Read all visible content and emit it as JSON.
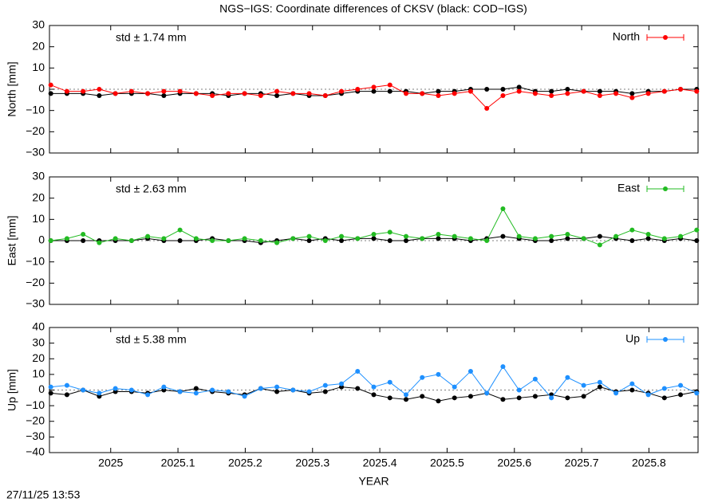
{
  "title": "NGS−IGS: Coordinate differences of CKSV (black: COD−IGS)",
  "timestamp": "27/11/25 13:53",
  "chart_data": [
    {
      "type": "line",
      "ylabel": "North [mm]",
      "annotation": "std ± 1.74 mm",
      "xlim": [
        2024.909,
        2025.873
      ],
      "xticks": [
        2025,
        2025.1,
        2025.2,
        2025.3,
        2025.4,
        2025.5,
        2025.6,
        2025.7,
        2025.8
      ],
      "ylim": [
        -30,
        30
      ],
      "yticks": [
        {
          "value": -30,
          "label": "−30"
        },
        {
          "value": -20,
          "label": "−20"
        },
        {
          "value": -10,
          "label": "−10"
        },
        0,
        10,
        20,
        30
      ],
      "x": [
        2024.911,
        2024.935,
        2024.959,
        2024.983,
        2025.007,
        2025.031,
        2025.055,
        2025.079,
        2025.103,
        2025.127,
        2025.151,
        2025.175,
        2025.199,
        2025.223,
        2025.247,
        2025.271,
        2025.295,
        2025.319,
        2025.343,
        2025.367,
        2025.391,
        2025.415,
        2025.439,
        2025.463,
        2025.487,
        2025.511,
        2025.535,
        2025.559,
        2025.583,
        2025.607,
        2025.631,
        2025.655,
        2025.679,
        2025.703,
        2025.727,
        2025.751,
        2025.775,
        2025.799,
        2025.823,
        2025.847,
        2025.871
      ],
      "series": [
        {
          "color": "#000000",
          "values": [
            -2,
            -2,
            -2,
            -3,
            -2,
            -2,
            -2,
            -3,
            -2,
            -2,
            -2,
            -3,
            -2,
            -2,
            -3,
            -2,
            -3,
            -3,
            -2,
            -1,
            -1,
            -1,
            -1,
            -2,
            -1,
            -1,
            0,
            0,
            0,
            1,
            -1,
            -1,
            0,
            -1,
            -1,
            -1,
            -2,
            -1,
            -1,
            0,
            0
          ]
        },
        {
          "name": "North",
          "color": "#ff0000",
          "values": [
            2,
            -1,
            -1,
            0,
            -2,
            -1,
            -2,
            -1,
            -1,
            -2,
            -3,
            -2,
            -2,
            -3,
            -1,
            -2,
            -2,
            -3,
            -1,
            0,
            1,
            2,
            -2,
            -2,
            -3,
            -2,
            -1,
            -9,
            -3,
            -1,
            -2,
            -3,
            -2,
            -1,
            -3,
            -2,
            -4,
            -2,
            -1,
            0,
            -1
          ]
        }
      ]
    },
    {
      "type": "line",
      "ylabel": "East [mm]",
      "annotation": "std ± 2.63 mm",
      "xlim": [
        2024.909,
        2025.873
      ],
      "xticks": [
        2025,
        2025.1,
        2025.2,
        2025.3,
        2025.4,
        2025.5,
        2025.6,
        2025.7,
        2025.8
      ],
      "ylim": [
        -30,
        30
      ],
      "yticks": [
        {
          "value": -30,
          "label": "−30"
        },
        {
          "value": -20,
          "label": "−20"
        },
        {
          "value": -10,
          "label": "−10"
        },
        0,
        10,
        20,
        30
      ],
      "x": [
        2024.911,
        2024.935,
        2024.959,
        2024.983,
        2025.007,
        2025.031,
        2025.055,
        2025.079,
        2025.103,
        2025.127,
        2025.151,
        2025.175,
        2025.199,
        2025.223,
        2025.247,
        2025.271,
        2025.295,
        2025.319,
        2025.343,
        2025.367,
        2025.391,
        2025.415,
        2025.439,
        2025.463,
        2025.487,
        2025.511,
        2025.535,
        2025.559,
        2025.583,
        2025.607,
        2025.631,
        2025.655,
        2025.679,
        2025.703,
        2025.727,
        2025.751,
        2025.775,
        2025.799,
        2025.823,
        2025.847,
        2025.871
      ],
      "series": [
        {
          "color": "#000000",
          "values": [
            0,
            0,
            0,
            0,
            0,
            0,
            1,
            0,
            0,
            0,
            1,
            0,
            0,
            -1,
            0,
            1,
            0,
            1,
            0,
            1,
            1,
            0,
            0,
            1,
            1,
            1,
            0,
            1,
            2,
            1,
            0,
            0,
            1,
            1,
            2,
            1,
            0,
            1,
            0,
            1,
            0
          ]
        },
        {
          "name": "East",
          "color": "#22bb22",
          "values": [
            0,
            1,
            3,
            -1,
            1,
            0,
            2,
            1,
            5,
            1,
            0,
            0,
            1,
            0,
            -1,
            1,
            2,
            0,
            2,
            1,
            3,
            4,
            2,
            1,
            3,
            2,
            1,
            0,
            15,
            2,
            1,
            2,
            3,
            1,
            -2,
            2,
            5,
            3,
            1,
            2,
            5
          ]
        }
      ]
    },
    {
      "type": "line",
      "ylabel": "Up [mm]",
      "annotation": "std ± 5.38 mm",
      "xlabel": "YEAR",
      "xlim": [
        2024.909,
        2025.873
      ],
      "xticks": [
        2025,
        2025.1,
        2025.2,
        2025.3,
        2025.4,
        2025.5,
        2025.6,
        2025.7,
        2025.8
      ],
      "ylim": [
        -40,
        40
      ],
      "yticks": [
        {
          "value": -40,
          "label": "−40"
        },
        {
          "value": -30,
          "label": "−30"
        },
        {
          "value": -20,
          "label": "−20"
        },
        {
          "value": -10,
          "label": "−10"
        },
        0,
        10,
        20,
        30,
        40
      ],
      "x": [
        2024.911,
        2024.935,
        2024.959,
        2024.983,
        2025.007,
        2025.031,
        2025.055,
        2025.079,
        2025.103,
        2025.127,
        2025.151,
        2025.175,
        2025.199,
        2025.223,
        2025.247,
        2025.271,
        2025.295,
        2025.319,
        2025.343,
        2025.367,
        2025.391,
        2025.415,
        2025.439,
        2025.463,
        2025.487,
        2025.511,
        2025.535,
        2025.559,
        2025.583,
        2025.607,
        2025.631,
        2025.655,
        2025.679,
        2025.703,
        2025.727,
        2025.751,
        2025.775,
        2025.799,
        2025.823,
        2025.847,
        2025.871
      ],
      "series": [
        {
          "color": "#000000",
          "values": [
            -2,
            -3,
            0,
            -4,
            -1,
            -1,
            -2,
            0,
            -1,
            1,
            -1,
            -2,
            -3,
            1,
            -1,
            0,
            -2,
            -1,
            2,
            1,
            -3,
            -5,
            -6,
            -4,
            -7,
            -5,
            -4,
            -2,
            -6,
            -5,
            -4,
            -3,
            -5,
            -4,
            2,
            -1,
            0,
            -2,
            -5,
            -3,
            -1
          ]
        },
        {
          "name": "Up",
          "color": "#1e90ff",
          "values": [
            2,
            3,
            0,
            -2,
            1,
            0,
            -3,
            2,
            -1,
            -2,
            0,
            -1,
            -4,
            1,
            2,
            0,
            -1,
            3,
            4,
            12,
            2,
            5,
            -3,
            8,
            10,
            2,
            12,
            -2,
            15,
            0,
            7,
            -5,
            8,
            3,
            5,
            -2,
            4,
            -3,
            1,
            3,
            -2
          ]
        }
      ]
    }
  ]
}
